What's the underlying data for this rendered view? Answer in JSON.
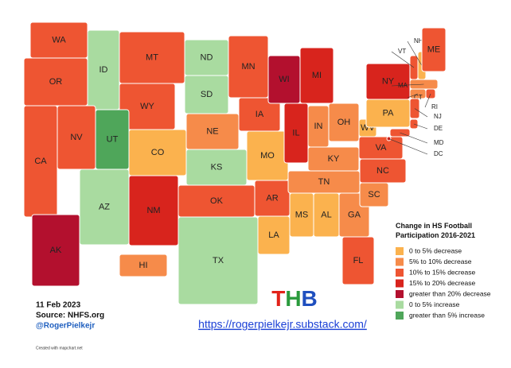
{
  "legend": {
    "title": "Change in HS Football Participation 2016-2021",
    "items": [
      {
        "label": "0 to 5% decrease",
        "color": "#fbb24e"
      },
      {
        "label": "5% to 10% decrease",
        "color": "#f68b4a"
      },
      {
        "label": "10% to 15% decrease",
        "color": "#ee5532"
      },
      {
        "label": "15% to 20% decrease",
        "color": "#d8241d"
      },
      {
        "label": "greater than 20% decrease",
        "color": "#b3102e"
      },
      {
        "label": "0 to 5% increase",
        "color": "#a9dba0"
      },
      {
        "label": "greater than 5% increase",
        "color": "#4fa65a"
      }
    ]
  },
  "states": [
    {
      "label": "WA",
      "category": 2
    },
    {
      "label": "OR",
      "category": 2
    },
    {
      "label": "ID",
      "category": 5
    },
    {
      "label": "MT",
      "category": 2
    },
    {
      "label": "WY",
      "category": 2
    },
    {
      "label": "NV",
      "category": 2
    },
    {
      "label": "CA",
      "category": 2
    },
    {
      "label": "UT",
      "category": 6
    },
    {
      "label": "CO",
      "category": 0
    },
    {
      "label": "AZ",
      "category": 5
    },
    {
      "label": "NM",
      "category": 3
    },
    {
      "label": "ND",
      "category": 5
    },
    {
      "label": "SD",
      "category": 5
    },
    {
      "label": "NE",
      "category": 1
    },
    {
      "label": "KS",
      "category": 5
    },
    {
      "label": "OK",
      "category": 2
    },
    {
      "label": "TX",
      "category": 5
    },
    {
      "label": "MN",
      "category": 2
    },
    {
      "label": "IA",
      "category": 2
    },
    {
      "label": "MO",
      "category": 0
    },
    {
      "label": "AR",
      "category": 2
    },
    {
      "label": "LA",
      "category": 0
    },
    {
      "label": "WI",
      "category": 4
    },
    {
      "label": "IL",
      "category": 3
    },
    {
      "label": "MI",
      "category": 3
    },
    {
      "label": "IN",
      "category": 1
    },
    {
      "label": "OH",
      "category": 1
    },
    {
      "label": "KY",
      "category": 1
    },
    {
      "label": "TN",
      "category": 1
    },
    {
      "label": "MS",
      "category": 0
    },
    {
      "label": "AL",
      "category": 0
    },
    {
      "label": "GA",
      "category": 1
    },
    {
      "label": "FL",
      "category": 2
    },
    {
      "label": "SC",
      "category": 1
    },
    {
      "label": "NC",
      "category": 2
    },
    {
      "label": "VA",
      "category": 2
    },
    {
      "label": "WV",
      "category": 0
    },
    {
      "label": "PA",
      "category": 0
    },
    {
      "label": "NY",
      "category": 3
    },
    {
      "label": "VT",
      "category": 2
    },
    {
      "label": "NH",
      "category": 0
    },
    {
      "label": "ME",
      "category": 2
    },
    {
      "label": "MA",
      "category": 1
    },
    {
      "label": "CT",
      "category": 1
    },
    {
      "label": "RI",
      "category": 2
    },
    {
      "label": "NJ",
      "category": 2
    },
    {
      "label": "DE",
      "category": 2
    },
    {
      "label": "MD",
      "category": 2
    },
    {
      "label": "DC",
      "category": 3
    },
    {
      "label": "AK",
      "category": 4
    },
    {
      "label": "HI",
      "category": 1
    }
  ],
  "footer": {
    "date": "11 Feb 2023",
    "source": "Source: NHFS.org",
    "handle": "@RogerPielkejr",
    "credit": "Created with mapchart.net",
    "logo": "THB",
    "url": "https://rogerpielkejr.substack.com/"
  }
}
